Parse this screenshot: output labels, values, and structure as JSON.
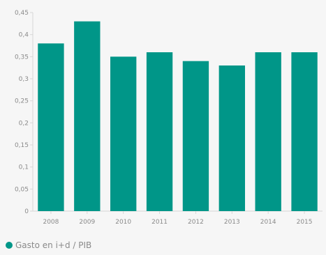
{
  "chart_data": {
    "type": "bar",
    "categories": [
      "2008",
      "2009",
      "2010",
      "2011",
      "2012",
      "2013",
      "2014",
      "2015"
    ],
    "series": [
      {
        "name": "Gasto en i+d / PIB",
        "values": [
          0.38,
          0.43,
          0.35,
          0.36,
          0.34,
          0.33,
          0.36,
          0.36
        ],
        "color": "#009688"
      }
    ],
    "ylim": [
      0,
      0.45
    ],
    "yticks": [
      0,
      0.05,
      0.1,
      0.15,
      0.2,
      0.25,
      0.3,
      0.35,
      0.4,
      0.45
    ],
    "ytick_labels": [
      "0",
      "0,05",
      "0,1",
      "0,15",
      "0,2",
      "0,25",
      "0,3",
      "0,35",
      "0,4",
      "0,45"
    ],
    "title": "",
    "xlabel": "",
    "ylabel": "",
    "grid": false,
    "legend_position": "bottom-left"
  }
}
